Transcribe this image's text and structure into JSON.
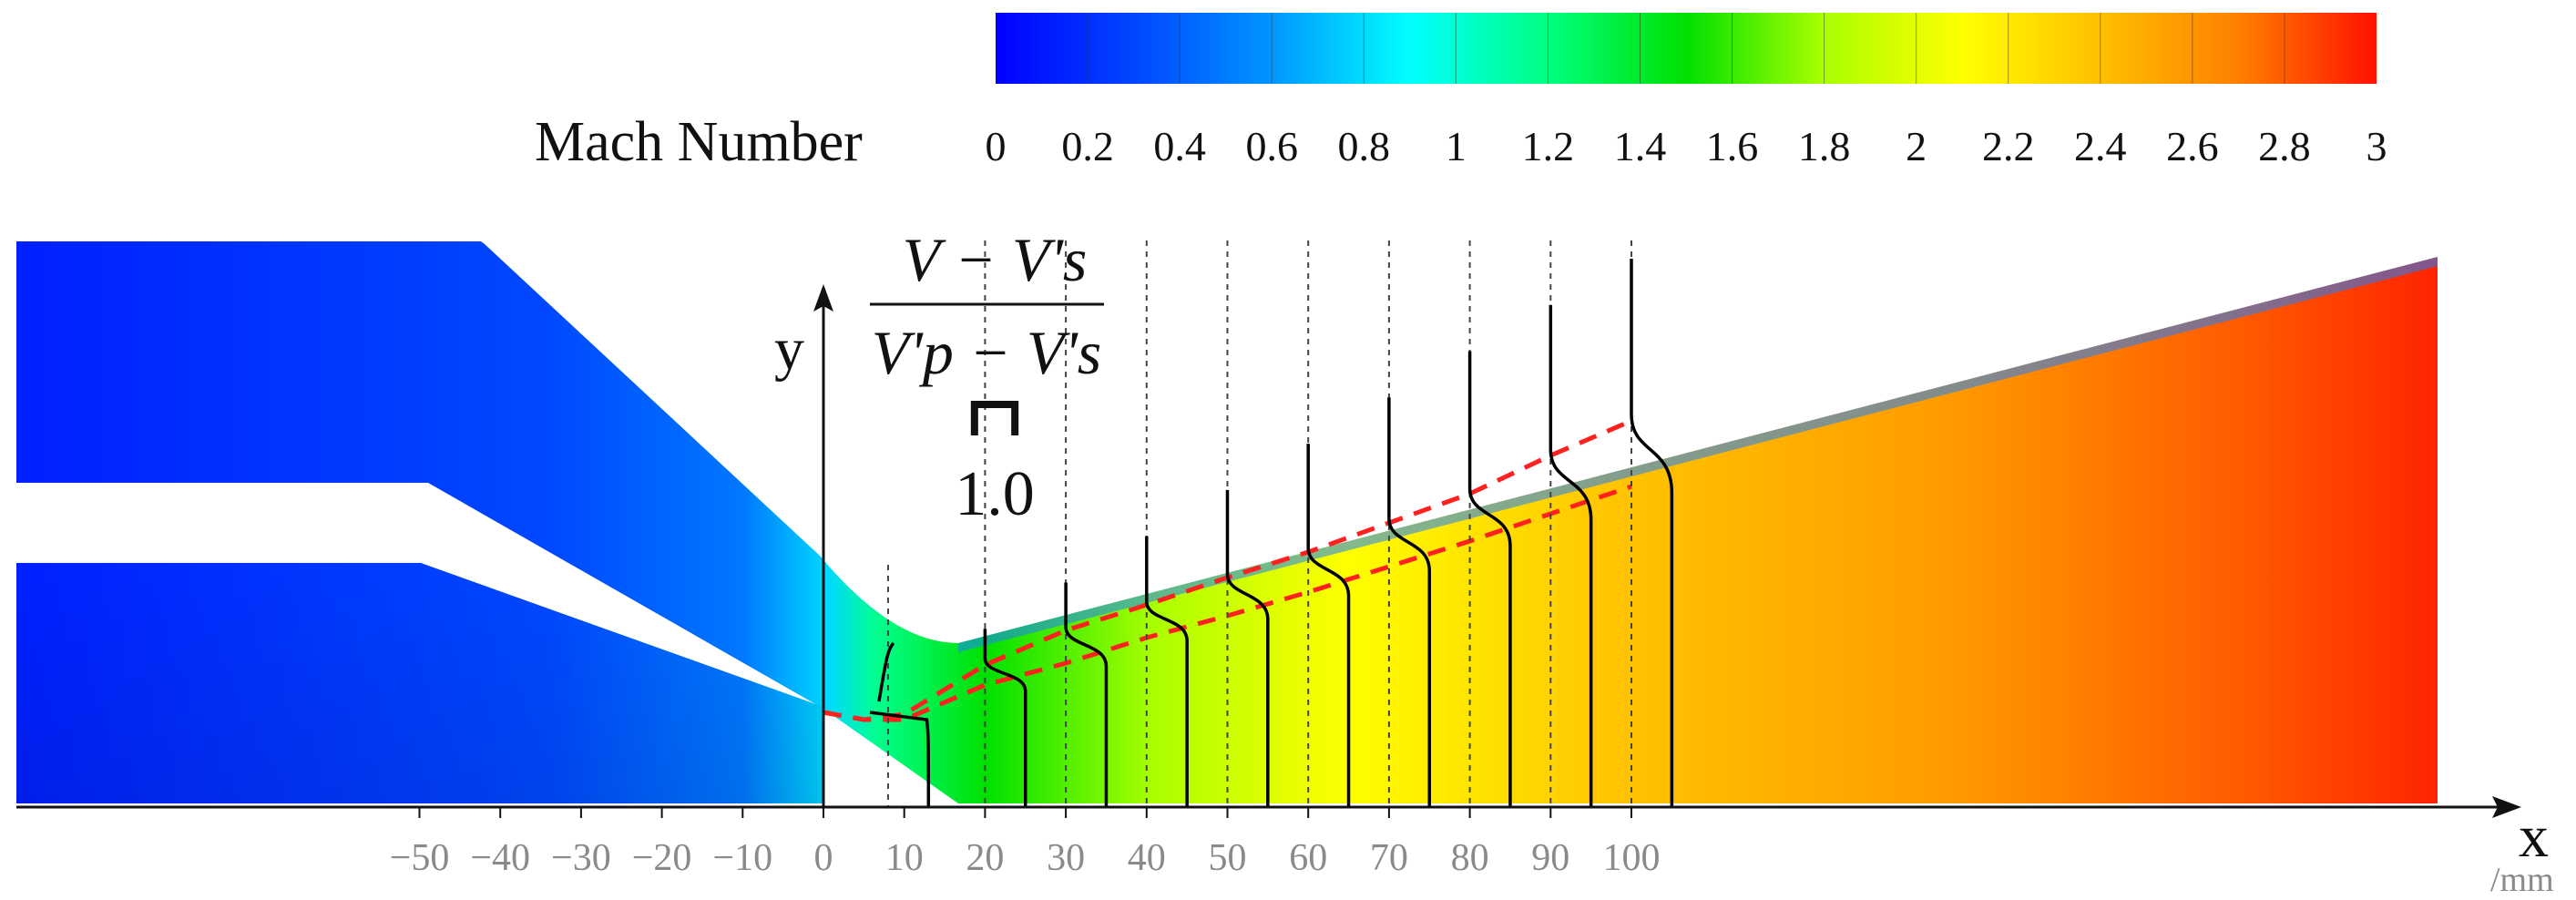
{
  "chart_data": {
    "type": "heatmap",
    "title": "",
    "colorbar": {
      "label": "Mach Number",
      "min": 0,
      "max": 3,
      "ticks": [
        "0",
        "0.2",
        "0.4",
        "0.6",
        "0.8",
        "1",
        "1.2",
        "1.4",
        "1.6",
        "1.8",
        "2",
        "2.2",
        "2.4",
        "2.6",
        "2.8",
        "3"
      ],
      "colors": [
        "#0000ff",
        "#0046ff",
        "#0096ff",
        "#00ffff",
        "#00ff80",
        "#00e000",
        "#aaff00",
        "#ffff00",
        "#ffbf00",
        "#ff8000",
        "#ff1000"
      ]
    },
    "xaxis": {
      "label": "x",
      "unit": "/mm",
      "ticks": [
        -50,
        -40,
        -30,
        -20,
        -10,
        0,
        10,
        20,
        30,
        40,
        50,
        60,
        70,
        80,
        90,
        100
      ]
    },
    "yaxis": {
      "label": "y"
    },
    "profile_scale": {
      "numerator": "V − V's",
      "denominator": "V'p − V's",
      "scale_label": "1.0"
    },
    "profile_stations_mm": [
      8,
      20,
      30,
      40,
      50,
      60,
      70,
      80,
      90,
      100
    ],
    "profile_scale_mm": 5,
    "shear_layer_color": "#ff2020"
  }
}
